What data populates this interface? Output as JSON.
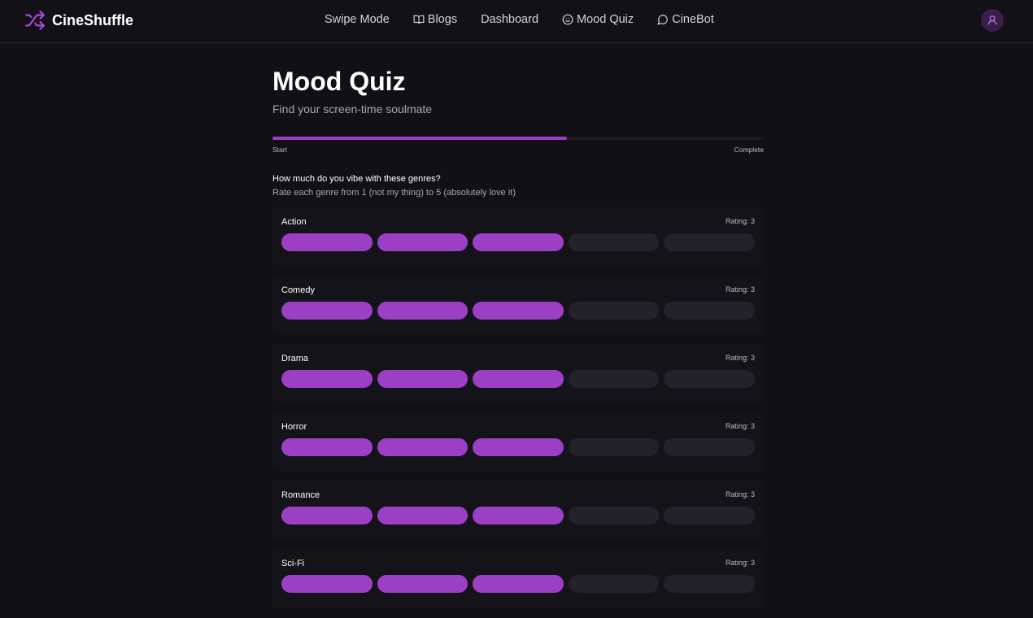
{
  "header": {
    "brand": "CineShuffle",
    "nav": [
      "Swipe Mode",
      "Blogs",
      "Dashboard",
      "Mood Quiz",
      "CineBot"
    ]
  },
  "quiz": {
    "title": "Mood Quiz",
    "subtitle": "Find your screen-time soulmate",
    "progress": 60,
    "progress_start": "Start",
    "progress_end": "Complete",
    "question": "How much do you vibe with these genres?",
    "instruction": "Rate each genre from 1 (not my thing) to 5 (absolutely love it)",
    "genres": [
      {
        "name": "Action",
        "rating": 3,
        "rating_label": "Rating: 3"
      },
      {
        "name": "Comedy",
        "rating": 3,
        "rating_label": "Rating: 3"
      },
      {
        "name": "Drama",
        "rating": 3,
        "rating_label": "Rating: 3"
      },
      {
        "name": "Horror",
        "rating": 3,
        "rating_label": "Rating: 3"
      },
      {
        "name": "Romance",
        "rating": 3,
        "rating_label": "Rating: 3"
      },
      {
        "name": "Sci-Fi",
        "rating": 3,
        "rating_label": "Rating: 3"
      }
    ]
  }
}
